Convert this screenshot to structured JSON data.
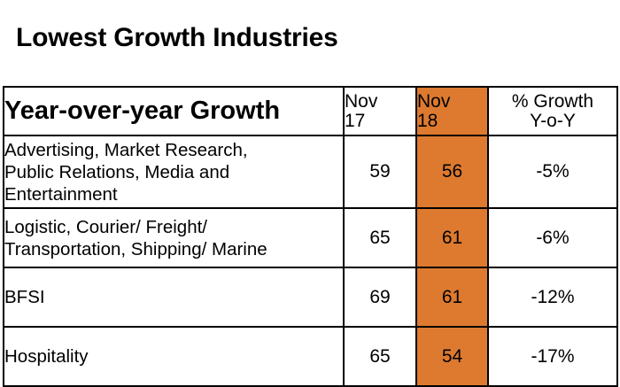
{
  "chart_data": {
    "type": "table",
    "title": "Lowest Growth Industries",
    "header": {
      "label": "Year-over-year Growth",
      "col1": [
        "Nov",
        "17"
      ],
      "col2": [
        "Nov",
        "18"
      ],
      "col3": [
        "% Growth",
        "Y-o-Y"
      ]
    },
    "rows": [
      {
        "industry": [
          "Advertising, Market Research,",
          "Public Relations, Media and",
          "Entertainment"
        ],
        "nov17": 59,
        "nov18": 56,
        "growth": "-5%"
      },
      {
        "industry": [
          "Logistic, Courier/ Freight/",
          "Transportation, Shipping/ Marine"
        ],
        "nov17": 65,
        "nov18": 61,
        "growth": "-6%"
      },
      {
        "industry": [
          "BFSI"
        ],
        "nov17": 69,
        "nov18": 61,
        "growth": "-12%"
      },
      {
        "industry": [
          "Hospitality"
        ],
        "nov17": 65,
        "nov18": 54,
        "growth": "-17%"
      }
    ]
  },
  "colors": {
    "highlight": "#dd7a30",
    "border": "#000000",
    "text": "#000000",
    "background": "#ffffff"
  }
}
